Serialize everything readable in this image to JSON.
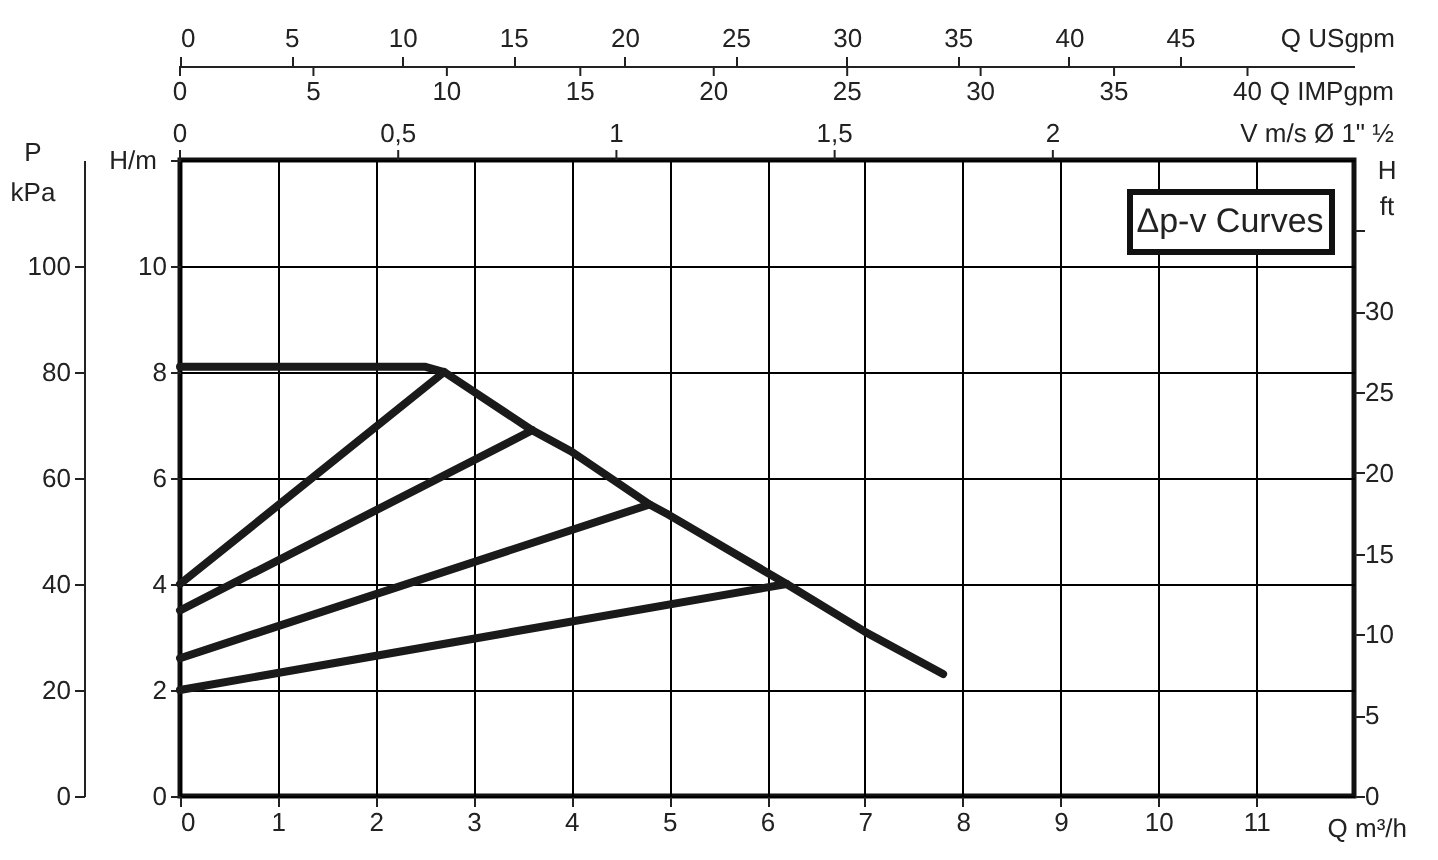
{
  "chart_data": {
    "type": "line",
    "xlabel": "Q m³/h",
    "ylabel": "H/m",
    "y2label": "H ft",
    "y3label": "P kPa",
    "x2label": "Q USgpm",
    "xlim": [
      0,
      12
    ],
    "xticks": [
      0,
      1,
      2,
      3,
      4,
      5,
      6,
      7,
      8,
      9,
      10,
      11
    ],
    "ylim": [
      0,
      12
    ],
    "yticks": [
      0,
      2,
      4,
      6,
      8,
      10,
      {
        "value": 12,
        "label": null
      }
    ],
    "y2lim": [
      0,
      39.37
    ],
    "y2ticks": [
      0,
      5,
      10,
      15,
      20,
      25,
      30,
      {
        "value": 35,
        "label": null
      }
    ],
    "y3lim": [
      0,
      120
    ],
    "y3ticks": [
      0,
      20,
      40,
      60,
      80,
      100
    ],
    "x2lim": [
      0,
      52.83
    ],
    "x2ticks": [
      0,
      5,
      10,
      15,
      20,
      25,
      30,
      35,
      40,
      45
    ],
    "grid": true,
    "line_style": "solid",
    "annotations": [
      "Δp-v Curves",
      "Q IMPgpm",
      "0",
      "5",
      "10",
      "15",
      "20",
      "25",
      "30",
      "35",
      "40",
      "V m/s Ø 1\" ½",
      "0",
      "0,5",
      "1",
      "1,5",
      "2"
    ],
    "series": [
      {
        "color": "#1a1a1a",
        "x": [
          0,
          2.5,
          2.7,
          3.6,
          4.0,
          4.8,
          5.0,
          6.2,
          7.0,
          7.8
        ],
        "values": [
          8.1,
          8.1,
          8.0,
          6.9,
          6.5,
          5.5,
          5.3,
          4.0,
          3.1,
          2.3
        ]
      },
      {
        "color": "#1a1a1a",
        "x": [
          0,
          2.7
        ],
        "values": [
          4.0,
          8.0
        ]
      },
      {
        "color": "#1a1a1a",
        "x": [
          0,
          3.6
        ],
        "values": [
          3.5,
          6.9
        ]
      },
      {
        "color": "#1a1a1a",
        "x": [
          0,
          4.8
        ],
        "values": [
          2.6,
          5.5
        ]
      },
      {
        "color": "#1a1a1a",
        "x": [
          0,
          6.2
        ],
        "values": [
          2.0,
          4.0
        ]
      }
    ]
  }
}
